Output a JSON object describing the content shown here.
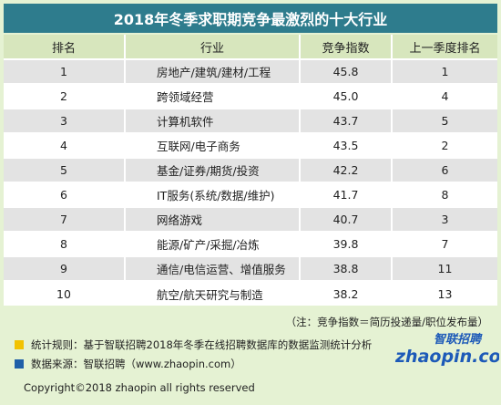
{
  "title": "2018年冬季求职期竞争最激烈的十大行业",
  "headers": {
    "rank": "排名",
    "industry": "行业",
    "index": "竞争指数",
    "prev_rank": "上一季度排名"
  },
  "rows": [
    {
      "rank": "1",
      "industry": "房地产/建筑/建材/工程",
      "index": "45.8",
      "prev_rank": "1"
    },
    {
      "rank": "2",
      "industry": "跨领域经营",
      "index": "45.0",
      "prev_rank": "4"
    },
    {
      "rank": "3",
      "industry": "计算机软件",
      "index": "43.7",
      "prev_rank": "5"
    },
    {
      "rank": "4",
      "industry": "互联网/电子商务",
      "index": "43.5",
      "prev_rank": "2"
    },
    {
      "rank": "5",
      "industry": "基金/证券/期货/投资",
      "index": "42.2",
      "prev_rank": "6"
    },
    {
      "rank": "6",
      "industry": "IT服务(系统/数据/维护)",
      "index": "41.7",
      "prev_rank": "8"
    },
    {
      "rank": "7",
      "industry": "网络游戏",
      "index": "40.7",
      "prev_rank": "3"
    },
    {
      "rank": "8",
      "industry": "能源/矿产/采掘/冶炼",
      "index": "39.8",
      "prev_rank": "7"
    },
    {
      "rank": "9",
      "industry": "通信/电信运营、增值服务",
      "index": "38.8",
      "prev_rank": "11"
    },
    {
      "rank": "10",
      "industry": "航空/航天研究与制造",
      "index": "38.2",
      "prev_rank": "13"
    }
  ],
  "note": "（注：竞争指数＝简历投递量/职位发布量）",
  "stats_rule": "统计规则：基于智联招聘2018年冬季在线招聘数据库的数据监测统计分析",
  "data_source": "数据来源：智联招聘（www.zhaopin.com）",
  "copyright": "Copyright©2018 zhaopin all rights reserved",
  "logo": {
    "cn": "智联招聘",
    "en": "zhaopin.com"
  },
  "colors": {
    "title_bg": "#2e7c8d",
    "page_bg": "#e5f2d3",
    "header_bg": "#d7e6bd",
    "row_alt": "#e3e3e3",
    "square_yellow": "#f2c200",
    "square_blue": "#1f5fa8",
    "logo_blue": "#1d5ab8"
  }
}
